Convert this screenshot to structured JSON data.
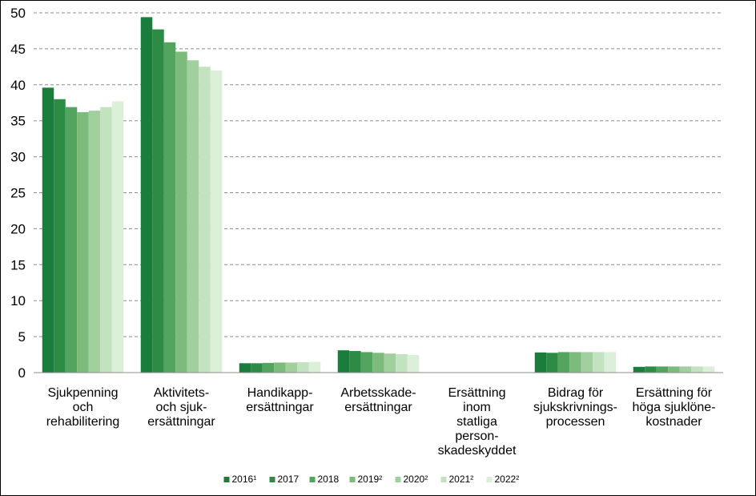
{
  "chart_data": {
    "type": "bar",
    "title": "",
    "xlabel": "",
    "ylabel": "",
    "ylim": [
      0,
      50
    ],
    "yticks": [
      0,
      5,
      10,
      15,
      20,
      25,
      30,
      35,
      40,
      45,
      50
    ],
    "grid": "horizontal dashed",
    "legend_position": "bottom",
    "categories": [
      [
        "Sjukpenning",
        "och",
        "rehabilitering"
      ],
      [
        "Aktivitets-",
        "och sjuk-",
        "ersättningar"
      ],
      [
        "Handikapp-",
        "ersättningar"
      ],
      [
        "Arbetsskade-",
        "ersättningar"
      ],
      [
        "Ersättning",
        "inom",
        "statliga",
        "person-",
        "skadeskyddet"
      ],
      [
        "Bidrag för",
        "sjukskrivnings-",
        "processen"
      ],
      [
        "Ersättning för",
        "höga sjuklöne-",
        "kostnader"
      ]
    ],
    "series": [
      {
        "name": "2016¹",
        "color": "#1a7d3b",
        "values": [
          39.6,
          49.4,
          1.3,
          3.1,
          0.0,
          2.8,
          0.8
        ]
      },
      {
        "name": "2017",
        "color": "#2e8b45",
        "values": [
          38.0,
          47.7,
          1.3,
          3.0,
          0.0,
          2.75,
          0.85
        ]
      },
      {
        "name": "2018",
        "color": "#52a45f",
        "values": [
          36.9,
          45.9,
          1.35,
          2.85,
          0.0,
          2.85,
          0.85
        ]
      },
      {
        "name": "2019²",
        "color": "#7dbb7c",
        "values": [
          36.2,
          44.6,
          1.4,
          2.75,
          0.0,
          2.85,
          0.85
        ]
      },
      {
        "name": "2020²",
        "color": "#a1cf9d",
        "values": [
          36.4,
          43.4,
          1.4,
          2.65,
          0.0,
          2.85,
          0.85
        ]
      },
      {
        "name": "2021²",
        "color": "#c3e2bf",
        "values": [
          36.9,
          42.5,
          1.45,
          2.55,
          0.0,
          2.85,
          0.85
        ]
      },
      {
        "name": "2022²",
        "color": "#dcefd9",
        "values": [
          37.7,
          42.0,
          1.5,
          2.45,
          0.0,
          2.85,
          0.85
        ]
      }
    ]
  }
}
